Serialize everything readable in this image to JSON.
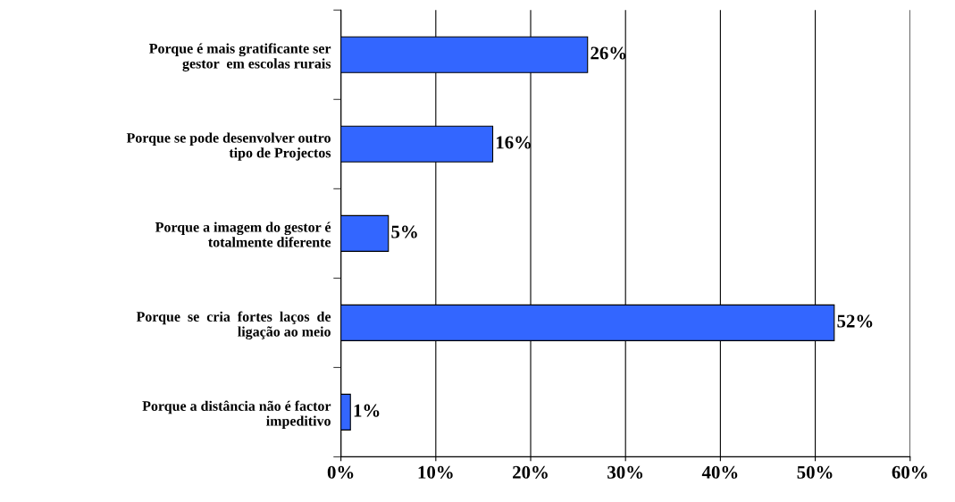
{
  "chart_data": {
    "type": "bar",
    "orientation": "horizontal",
    "categories": [
      "Porque é mais gratificante ser\ngestor  em escolas rurais",
      "Porque se pode desenvolver outro\ntipo de Projectos",
      "Porque a imagem do gestor é\ntotalmente diferente",
      "Porque  se  cria  fortes  laços  de\nligação ao meio",
      "Porque a distância não é factor\nimpeditivo"
    ],
    "values": [
      26,
      16,
      5,
      52,
      1
    ],
    "value_labels": [
      "26%",
      "16%",
      "5%",
      "52%",
      "1%"
    ],
    "color": "#3366ff",
    "xlim": [
      0,
      60
    ],
    "xticks": [
      {
        "value": 0,
        "label": "0%"
      },
      {
        "value": 10,
        "label": "10%"
      },
      {
        "value": 20,
        "label": "20%"
      },
      {
        "value": 30,
        "label": "30%"
      },
      {
        "value": 40,
        "label": "40%"
      },
      {
        "value": 50,
        "label": "50%"
      },
      {
        "value": 60,
        "label": "60%"
      }
    ],
    "grid": "x",
    "legend": false
  }
}
